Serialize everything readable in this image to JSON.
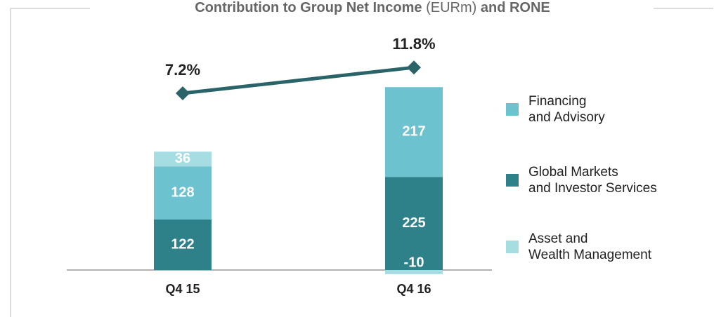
{
  "chart_data": {
    "type": "stacked_bar_line",
    "title": [
      "Contribution to Group Net Income",
      "(EURm)",
      "and RONE"
    ],
    "categories": [
      "Q4 15",
      "Q4 16"
    ],
    "series": [
      {
        "name": "Global Markets\nand Investor Services",
        "color": "#2e8189",
        "values": [
          122,
          225
        ]
      },
      {
        "name": "Financing\nand Advisory",
        "color": "#6cc3cf",
        "values": [
          128,
          217
        ]
      },
      {
        "name": "Asset and\nWealth Management",
        "color": "#a6dde3",
        "values": [
          36,
          -10
        ]
      }
    ],
    "line": {
      "color": "#2a6469",
      "values": [
        7.2,
        11.8
      ],
      "value_labels": [
        "7.2%",
        "11.8%"
      ]
    },
    "legend_order": [
      1,
      0,
      2
    ]
  }
}
